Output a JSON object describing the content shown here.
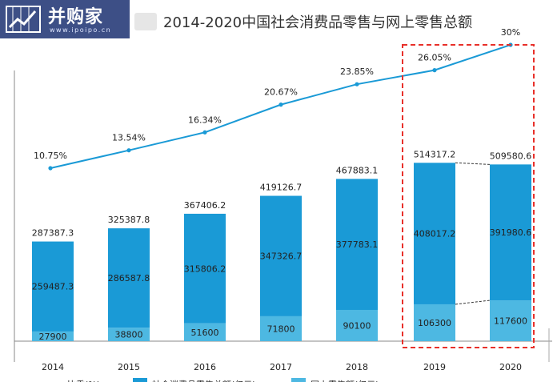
{
  "logo": {
    "text": "并购家",
    "sub": "www.ipoipo.cn"
  },
  "chart_data": {
    "type": "bar",
    "stacked": true,
    "title": "2014-2020中国社会消费品零售与网上零售总额",
    "categories": [
      "2014",
      "2015",
      "2016",
      "2017",
      "2018",
      "2019",
      "2020"
    ],
    "totals": [
      "287387.3",
      "325387.8",
      "367406.2",
      "419126.7",
      "467883.1",
      "514317.2",
      "509580.6"
    ],
    "series": [
      {
        "name": "社会消费品零售总额(亿元)",
        "values": [
          259487.3,
          286587.8,
          315806.2,
          347326.7,
          377783.1,
          408017.2,
          391980.6
        ],
        "labels": [
          "259487.3",
          "286587.8",
          "315806.2",
          "347326.7",
          "377783.1",
          "408017.2",
          "391980.6"
        ],
        "color": "#1a9ad6"
      },
      {
        "name": "网上零售额(亿元)",
        "values": [
          27900,
          38800,
          51600,
          71800,
          90100,
          106300,
          117600
        ],
        "labels": [
          "27900",
          "38800",
          "51600",
          "71800",
          "90100",
          "106300",
          "117600"
        ],
        "color": "#4db8e2"
      }
    ],
    "line": {
      "name": "比重(%)",
      "values": [
        10.75,
        13.54,
        16.34,
        20.67,
        23.85,
        26.05,
        30
      ],
      "labels": [
        "10.75%",
        "13.54%",
        "16.34%",
        "20.67%",
        "23.85%",
        "26.05%",
        "30%"
      ],
      "color": "#1a9ad6"
    },
    "highlight": {
      "categories": [
        "2019",
        "2020"
      ],
      "color": "#e8302a"
    },
    "legend_position": "bottom",
    "grid": false
  }
}
